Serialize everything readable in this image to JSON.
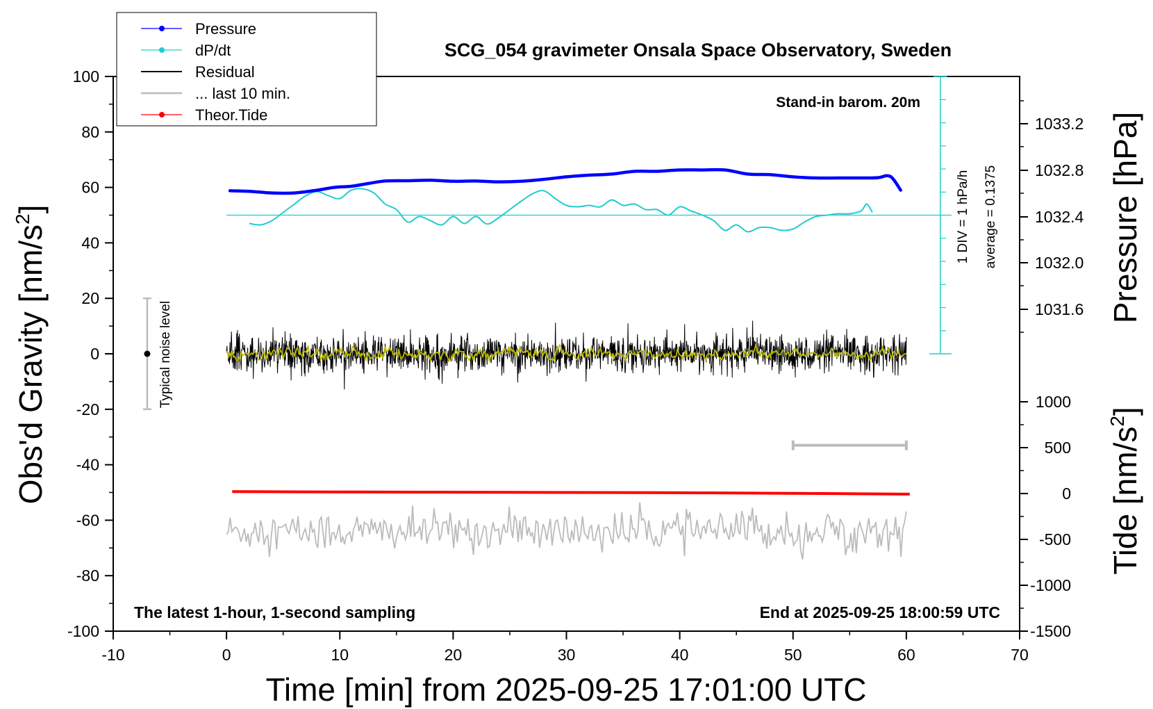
{
  "chart_data": {
    "type": "line",
    "title": "SCG_054 gravimeter Onsala Space Observatory, Sweden",
    "xlabel": "Time [min] from 2025-09-25 17:01:00 UTC",
    "xlim": [
      -10,
      70
    ],
    "xticks": [
      "-10",
      "0",
      "10",
      "20",
      "30",
      "40",
      "50",
      "60",
      "70"
    ],
    "left_axis": {
      "label_main": "Obs'd Gravity [nm/s",
      "label_sup": "2",
      "label_end": "]",
      "ylim": [
        -100,
        100
      ],
      "ticks": [
        "100",
        "80",
        "60",
        "40",
        "20",
        "0",
        "-20",
        "-40",
        "-60",
        "-80",
        "-100"
      ]
    },
    "pressure_axis": {
      "label": "Pressure [hPa]",
      "ticks": [
        "1033.2",
        "1032.8",
        "1032.4",
        "1032.0",
        "1031.6"
      ]
    },
    "tide_axis": {
      "label_main": "Tide [nm/s",
      "label_sup": "2",
      "label_end": "]",
      "ticks": [
        "1000",
        "500",
        "0",
        "-500",
        "-1000",
        "-1500"
      ]
    },
    "legend": {
      "placement": "top-left",
      "entries": [
        {
          "name": "Pressure",
          "color": "#0000ff",
          "marker": true
        },
        {
          "name": "dP/dt",
          "color": "#22cccc",
          "marker": true
        },
        {
          "name": "Residual",
          "color": "#000000",
          "marker": false
        },
        {
          "name": "... last 10 min.",
          "color": "#bbbbbb",
          "marker": false
        },
        {
          "name": "Theor.Tide",
          "color": "#ff0000",
          "marker": true
        }
      ]
    },
    "annotations": {
      "barometer": "Stand-in barom. 20m",
      "div_label": "1 DIV = 1 hPa/h",
      "average_label": "average = 0.1375",
      "noise_label": "Typical noise level",
      "bottom_left": "The latest 1-hour, 1-second sampling",
      "bottom_right": "End at 2025-09-25 18:00:59 UTC"
    },
    "noise_bar": {
      "x": -7,
      "ymin": -20,
      "ymax": 20,
      "center": 0
    },
    "dpdt_scale": {
      "baseline": 50,
      "top": 100,
      "bottom": 0
    },
    "last10_bar": {
      "x0": 50,
      "x1": 60,
      "y": -33
    },
    "series": [
      {
        "name": "Pressure",
        "color": "#0000ff",
        "x": [
          0.3,
          2,
          4,
          6,
          8,
          9.5,
          11,
          12.5,
          14,
          16,
          18,
          20,
          22,
          24,
          26,
          28,
          30,
          32,
          34,
          36,
          38,
          40,
          42,
          44,
          46,
          48,
          50,
          52,
          54,
          56,
          57.5,
          58.3,
          58.8,
          59.5
        ],
        "y": [
          58.8,
          58.6,
          58.0,
          58.0,
          59.0,
          60.0,
          60.4,
          61.4,
          62.3,
          62.4,
          62.6,
          62.2,
          62.3,
          62.0,
          62.2,
          62.9,
          63.8,
          64.4,
          64.8,
          65.8,
          65.8,
          66.3,
          66.3,
          66.3,
          64.8,
          64.6,
          63.8,
          63.4,
          63.4,
          63.4,
          63.5,
          64.2,
          63.2,
          59.0
        ]
      },
      {
        "name": "dP/dt",
        "color": "#22cccc",
        "x": [
          2,
          3,
          4,
          5,
          6,
          7,
          8,
          9,
          10,
          11,
          12,
          13,
          14,
          15,
          16,
          17,
          18,
          19,
          20,
          21,
          22,
          23,
          24,
          25,
          26,
          27,
          28,
          29,
          30,
          31,
          32,
          33,
          34,
          35,
          36,
          37,
          38,
          39,
          40,
          41,
          42,
          43,
          44,
          45,
          46,
          47,
          48,
          49,
          50,
          51,
          52,
          53,
          54,
          55,
          56,
          56.5,
          57
        ],
        "y": [
          47,
          46.5,
          48,
          51,
          54,
          57,
          58.5,
          57,
          56,
          59,
          59.5,
          58,
          54,
          52,
          47.5,
          49.5,
          48,
          46.5,
          49.5,
          47,
          49.5,
          46.8,
          49,
          52,
          55,
          57.7,
          58.8,
          56,
          53.5,
          53,
          53.5,
          53,
          55.5,
          53.5,
          54,
          52,
          52,
          50,
          53,
          51.5,
          50,
          48,
          44.5,
          46.5,
          44,
          45.5,
          45.5,
          44.5,
          45,
          47.5,
          49.5,
          50,
          50.5,
          50.5,
          51.5,
          54,
          51
        ]
      },
      {
        "name": "Residual",
        "color": "#000000",
        "x_start": 0,
        "x_end": 60,
        "mean": 0,
        "std": 3.2,
        "samples": 1800
      },
      {
        "name": "Residual (smoothed)",
        "color": "#bbbb00",
        "x_start": 0,
        "x_end": 60,
        "mean": 0,
        "std": 0.9
      },
      {
        "name": "... last 10 min.",
        "color": "#bbbbbb",
        "x_start": 0,
        "x_end": 60,
        "mean": -64,
        "std": 3.5
      },
      {
        "name": "Theor.Tide",
        "color": "#ff0000",
        "x": [
          0.5,
          10,
          20,
          30,
          40,
          50,
          60.3
        ],
        "y": [
          -49.7,
          -49.8,
          -49.9,
          -50.0,
          -50.1,
          -50.3,
          -50.6
        ]
      }
    ]
  }
}
